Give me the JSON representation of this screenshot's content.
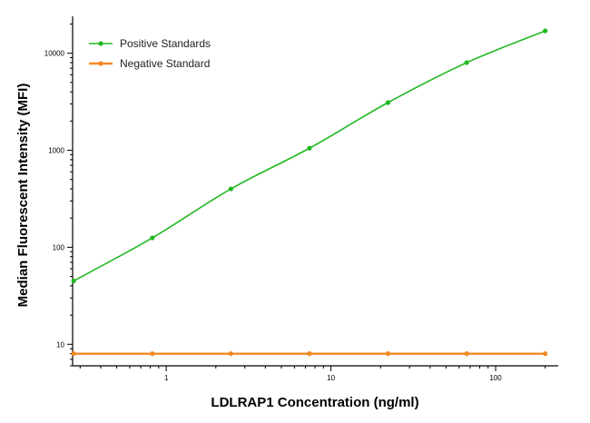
{
  "chart_data": {
    "type": "line",
    "xscale": "log",
    "yscale": "log",
    "xlabel": "LDLRAP1 Concentration (ng/ml)",
    "ylabel": "Median  Fluorescent Intensity  (MFI)",
    "xlim": [
      0.27,
      240
    ],
    "ylim": [
      6,
      24000
    ],
    "x_ticks": [
      1,
      10,
      100
    ],
    "x_tick_labels": [
      "1",
      "10",
      "100"
    ],
    "y_ticks": [
      10,
      100,
      1000,
      10000
    ],
    "y_tick_labels": [
      "10",
      "100",
      "1000",
      "10000"
    ],
    "grid": false,
    "legend_position": "top-left",
    "series": [
      {
        "name": "Positive Standards",
        "color": "#22b822",
        "x": [
          0.274,
          0.823,
          2.47,
          7.41,
          22.2,
          66.7,
          200
        ],
        "y": [
          45,
          125,
          400,
          1050,
          3100,
          8000,
          17000
        ]
      },
      {
        "name": "Negative Standard",
        "color": "#f08a24",
        "x": [
          0.274,
          0.823,
          2.47,
          7.41,
          22.2,
          66.7,
          200
        ],
        "y": [
          8,
          8,
          8,
          8,
          8,
          8,
          8
        ]
      }
    ]
  }
}
